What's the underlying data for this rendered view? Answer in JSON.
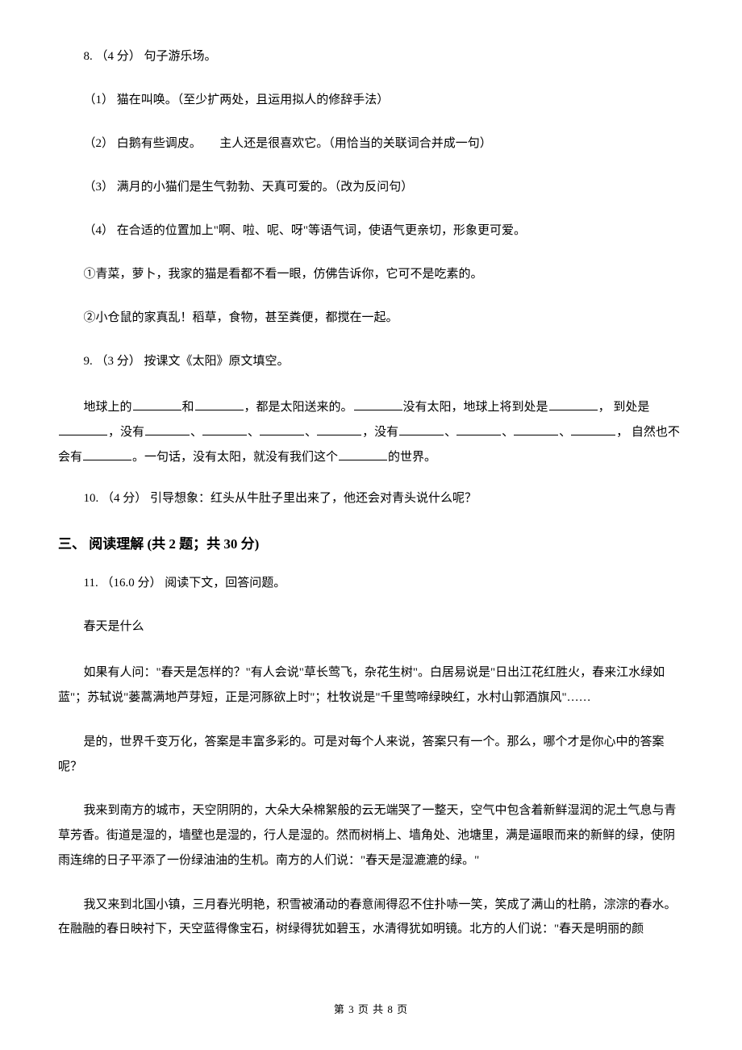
{
  "q8": {
    "num": "8.  （4 分）  句子游乐场。",
    "s1": "（1）  猫在叫唤。（至少扩两处，且运用拟人的修辞手法）",
    "s2": "（2）  白鹅有些调皮。　　主人还是很喜欢它。（用恰当的关联词合并成一句）",
    "s3": "（3）  满月的小猫们是生气勃勃、天真可爱的。（改为反问句）",
    "s4": "（4）  在合适的位置加上\"啊、啦、呢、呀\"等语气词，使语气更亲切，形象更可爱。",
    "ex1": "①青菜，萝卜，我家的猫是看都不看一眼，仿佛告诉你，它可不是吃素的。",
    "ex2": "②小仓鼠的家真乱！稻草，食物，甚至粪便，都搅在一起。"
  },
  "q9": {
    "num": "9.  （3 分）  按课文《太阳》原文填空。",
    "seg1": "地球上的",
    "seg2": "和",
    "seg3": "，都是太阳送来的。",
    "seg4": "没有太阳，地球上将到处是",
    "seg5": "， 到处是",
    "seg6": "，没有",
    "seg7": "，没有",
    "seg8": "， 自然也不会有",
    "seg9": "。一句话，没有太阳，就没有我们这个",
    "seg10": "的世界。",
    "dun": "、"
  },
  "q10": {
    "num": "10.  （4 分）  引导想象：红头从牛肚子里出来了，他还会对青头说什么呢？"
  },
  "section3": {
    "title": "三、 阅读理解 (共 2 题；共 30 分)"
  },
  "q11": {
    "num": "11.  （16.0 分）  阅读下文，回答问题。",
    "title": "春天是什么",
    "p1": "如果有人问：\"春天是怎样的？\"有人会说\"草长莺飞，杂花生树\"。白居易说是\"日出江花红胜火，春来江水绿如蓝\"；苏轼说\"蒌蒿满地芦芽短，正是河豚欲上时\"；杜牧说是\"千里莺啼绿映红，水村山郭酒旗风\"……",
    "p2": "是的，世界千变万化，答案是丰富多彩的。可是对每个人来说，答案只有一个。那么，哪个才是你心中的答案呢？",
    "p3": "我来到南方的城市，天空阴阴的，大朵大朵棉絮般的云无端哭了一整天，空气中包含着新鲜湿润的泥土气息与青草芳香。街道是湿的，墙壁也是湿的，行人是湿的。然而树梢上、墙角处、池塘里，满是逼眼而来的新鲜的绿，使阴雨连绵的日子平添了一份绿油油的生机。南方的人们说：\"春天是湿漉漉的绿。\"",
    "p4": "我又来到北国小镇，三月春光明艳，积雪被涌动的春意闹得忍不住扑哧一笑，笑成了满山的杜鹃，淙淙的春水。在融融的春日映衬下，天空蓝得像宝石，树绿得犹如碧玉，水清得犹如明镜。北方的人们说：\"春天是明丽的颜"
  },
  "footer": {
    "text": "第 3 页 共 8 页"
  }
}
